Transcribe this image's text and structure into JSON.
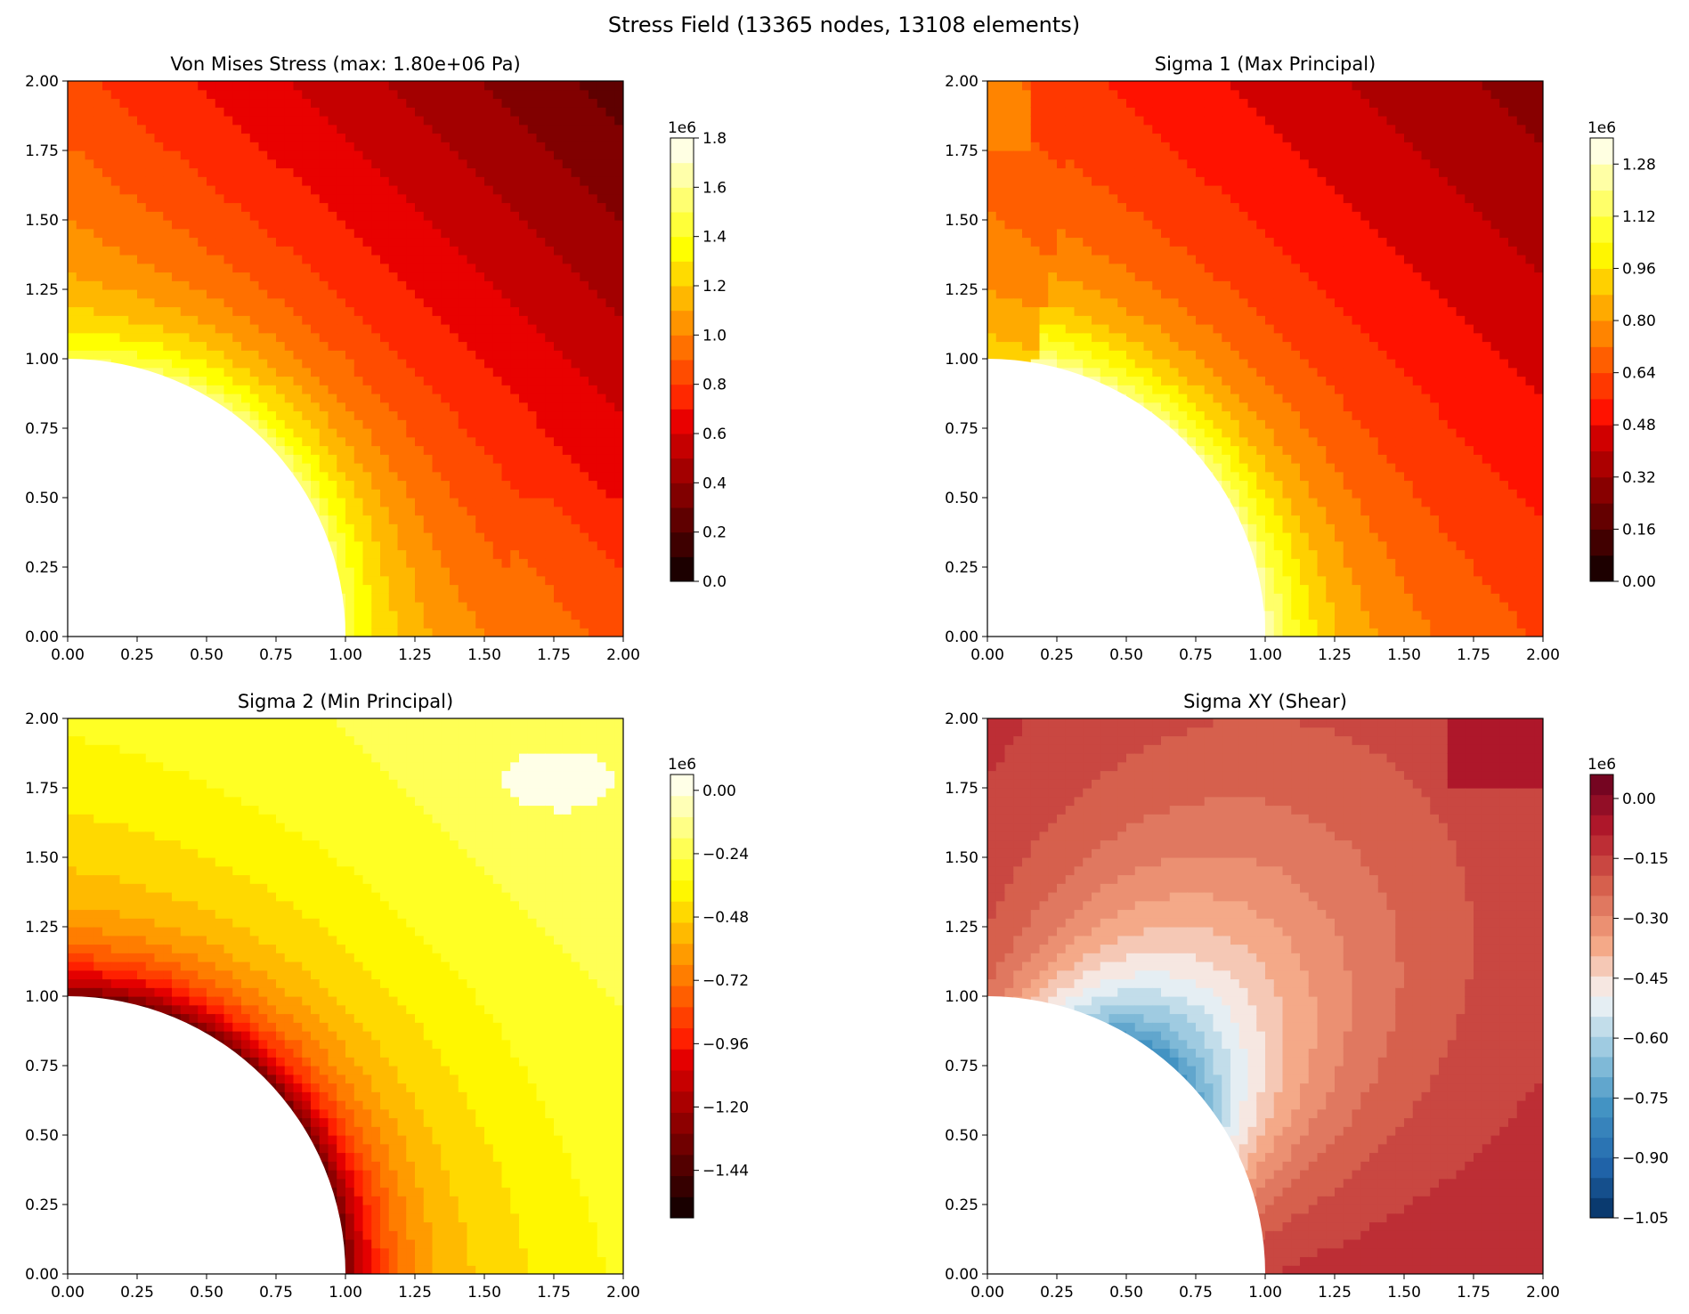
{
  "suptitle": "Stress Field (13365 nodes, 13108 elements)",
  "chart_data": [
    {
      "type": "contour",
      "title": "Von Mises Stress (max: 1.80e+06 Pa)",
      "xlim": [
        0,
        2
      ],
      "ylim": [
        0,
        2
      ],
      "x_ticks": [
        "0.00",
        "0.25",
        "0.50",
        "0.75",
        "1.00",
        "1.25",
        "1.50",
        "1.75",
        "2.00"
      ],
      "y_ticks": [
        "0.00",
        "0.25",
        "0.50",
        "0.75",
        "1.00",
        "1.25",
        "1.50",
        "1.75",
        "2.00"
      ],
      "hole_radius": 1.0,
      "colormap": "hot",
      "colorbar": {
        "multiplier": "1e6",
        "range": [
          0,
          1.8
        ],
        "ticks": [
          "0.0",
          "0.2",
          "0.4",
          "0.6",
          "0.8",
          "1.0",
          "1.2",
          "1.4",
          "1.6",
          "1.8"
        ],
        "levels": 18
      }
    },
    {
      "type": "contour",
      "title": "Sigma 1 (Max Principal)",
      "xlim": [
        0,
        2
      ],
      "ylim": [
        0,
        2
      ],
      "x_ticks": [
        "0.00",
        "0.25",
        "0.50",
        "0.75",
        "1.00",
        "1.25",
        "1.50",
        "1.75",
        "2.00"
      ],
      "y_ticks": [
        "0.00",
        "0.25",
        "0.50",
        "0.75",
        "1.00",
        "1.25",
        "1.50",
        "1.75",
        "2.00"
      ],
      "hole_radius": 1.0,
      "colormap": "hot",
      "colorbar": {
        "multiplier": "1e6",
        "range": [
          0,
          1.36
        ],
        "ticks": [
          "0.00",
          "0.16",
          "0.32",
          "0.48",
          "0.64",
          "0.80",
          "0.96",
          "1.12",
          "1.28"
        ],
        "levels": 17
      }
    },
    {
      "type": "contour",
      "title": "Sigma 2 (Min Principal)",
      "xlim": [
        0,
        2
      ],
      "ylim": [
        0,
        2
      ],
      "x_ticks": [
        "0.00",
        "0.25",
        "0.50",
        "0.75",
        "1.00",
        "1.25",
        "1.50",
        "1.75",
        "2.00"
      ],
      "y_ticks": [
        "0.00",
        "0.25",
        "0.50",
        "0.75",
        "1.00",
        "1.25",
        "1.50",
        "1.75",
        "2.00"
      ],
      "hole_radius": 1.0,
      "colormap": "hot",
      "colorbar": {
        "multiplier": "1e6",
        "range": [
          -1.62,
          0.06
        ],
        "ticks": [
          "−1.44",
          "−1.20",
          "−0.96",
          "−0.72",
          "−0.48",
          "−0.24",
          "0.00"
        ],
        "levels": 21
      }
    },
    {
      "type": "contour",
      "title": "Sigma XY (Shear)",
      "xlim": [
        0,
        2
      ],
      "ylim": [
        0,
        2
      ],
      "x_ticks": [
        "0.00",
        "0.25",
        "0.50",
        "0.75",
        "1.00",
        "1.25",
        "1.50",
        "1.75",
        "2.00"
      ],
      "y_ticks": [
        "0.00",
        "0.25",
        "0.50",
        "0.75",
        "1.00",
        "1.25",
        "1.50",
        "1.75",
        "2.00"
      ],
      "hole_radius": 1.0,
      "colormap": "RdBu_r",
      "colorbar": {
        "multiplier": "1e6",
        "range": [
          -1.05,
          0.06
        ],
        "ticks": [
          "−1.05",
          "−0.90",
          "−0.75",
          "−0.60",
          "−0.45",
          "−0.30",
          "−0.15",
          "0.00"
        ],
        "levels": 22
      }
    }
  ]
}
